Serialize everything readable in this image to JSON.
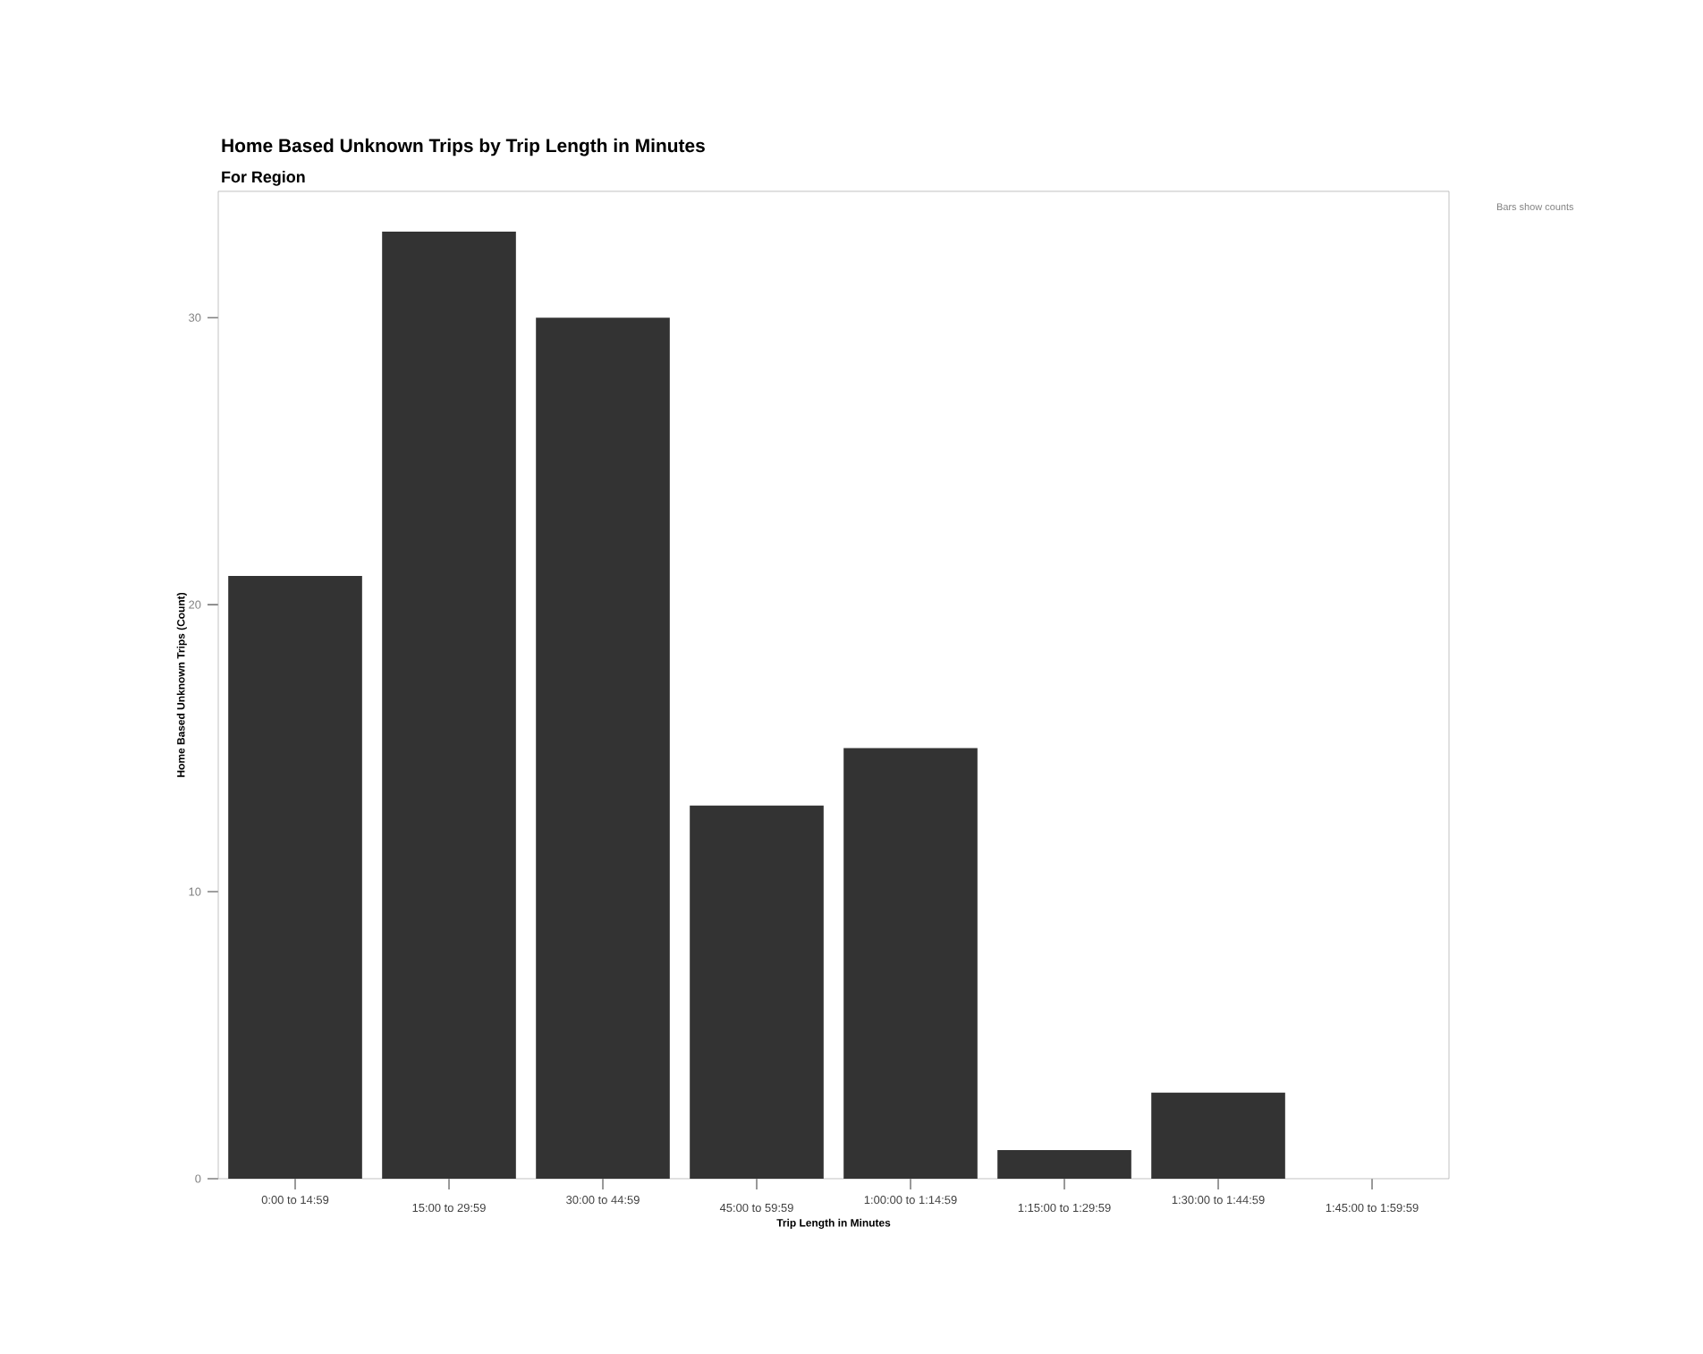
{
  "chart_data": {
    "type": "bar",
    "title": "Home Based Unknown Trips by Trip Length in Minutes",
    "subtitle": "For Region",
    "xlabel": "Trip Length in Minutes",
    "ylabel": "Home Based Unknown Trips (Count)",
    "categories": [
      "0:00 to 14:59",
      "15:00 to 29:59",
      "30:00 to 44:59",
      "45:00 to 59:59",
      "1:00:00 to 1:14:59",
      "1:15:00 to 1:29:59",
      "1:30:00 to 1:44:59",
      "1:45:00 to 1:59:59"
    ],
    "values": [
      21,
      33,
      30,
      13,
      15,
      1,
      3,
      0
    ],
    "color": "#333333",
    "ylim": [
      0,
      34.4
    ],
    "yticks": [
      0,
      10,
      20,
      30
    ],
    "annotations": [
      "Bars show counts"
    ]
  }
}
